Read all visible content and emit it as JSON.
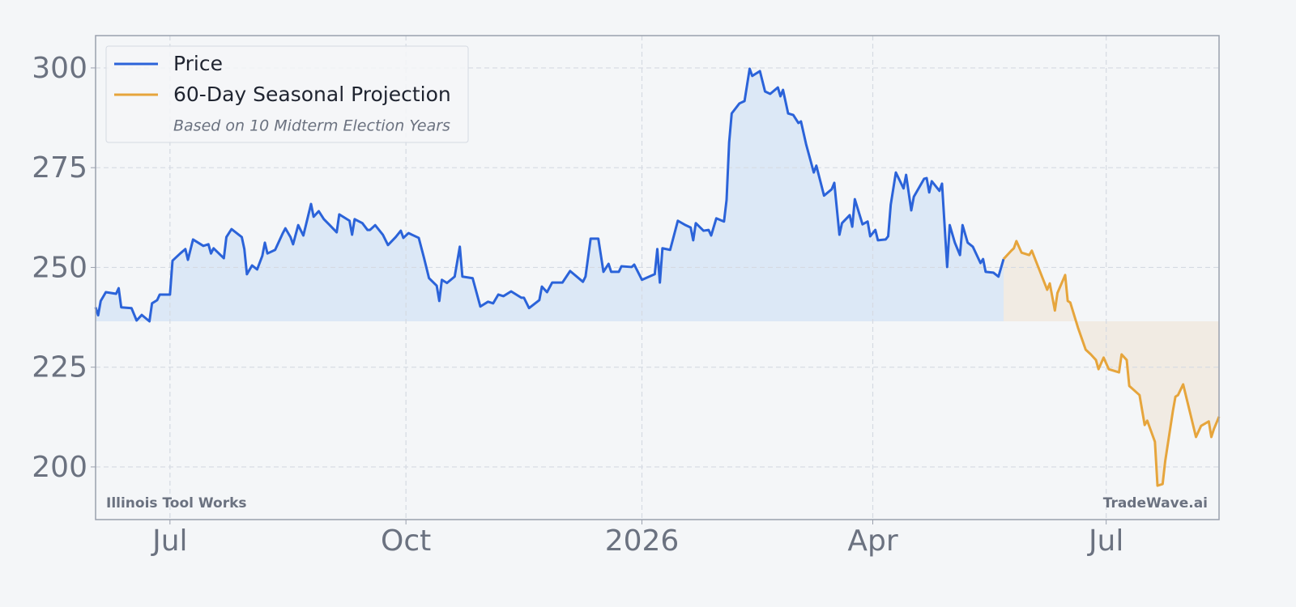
{
  "chart_data": {
    "type": "line",
    "x_ticks_note": null,
    "series": [
      {
        "name": "Price",
        "color": "#2b63d9",
        "x": [
          -29,
          -28,
          -27,
          -25,
          -21,
          -20,
          -19,
          -15,
          -13,
          -11,
          -8,
          -7,
          -5,
          -4,
          0,
          1,
          4,
          6,
          7,
          9,
          13,
          15,
          16,
          17,
          21,
          22,
          24,
          28,
          29,
          30,
          32,
          34,
          36,
          37,
          38,
          41,
          44,
          45,
          47,
          48,
          50,
          52,
          55,
          56,
          58,
          60,
          62,
          65,
          66,
          70,
          71,
          72,
          75,
          77,
          78,
          80,
          83,
          85,
          88,
          90,
          91,
          93,
          97,
          99,
          101,
          104,
          105,
          106,
          108,
          111,
          113,
          114,
          118,
          121,
          124,
          126,
          128,
          130,
          133,
          137,
          138,
          140,
          144,
          145,
          147,
          149,
          153,
          156,
          161,
          162,
          164,
          167,
          169,
          171,
          172,
          175,
          176,
          180,
          181,
          184,
          189,
          190,
          191,
          192,
          195,
          198,
          201,
          203,
          204,
          205,
          208,
          210,
          211,
          213,
          216,
          217,
          218,
          219,
          222,
          224,
          226,
          227,
          230,
          232,
          234,
          237,
          238,
          239,
          241,
          243,
          245,
          246,
          248,
          251,
          252,
          255,
          258,
          259,
          261,
          262,
          265,
          266,
          267,
          270,
          272,
          273,
          275,
          276,
          279,
          280,
          281,
          283,
          286,
          287,
          289,
          290,
          294,
          295,
          296,
          297,
          300,
          301,
          303,
          304,
          306,
          308,
          309,
          311,
          313,
          316,
          317,
          318,
          321,
          323,
          325
        ],
        "values": [
          240,
          238,
          241.6,
          243.8,
          243.4,
          244.8,
          240,
          239.8,
          236.7,
          238.1,
          236.5,
          241,
          241.8,
          243.2,
          243.2,
          251.7,
          253.5,
          254.6,
          251.9,
          257,
          255.4,
          255.8,
          253.5,
          254.8,
          252.3,
          257.6,
          259.6,
          257.6,
          254.6,
          248.3,
          250.5,
          249.5,
          252.9,
          256.2,
          253.5,
          254.4,
          258.6,
          259.8,
          257.6,
          255.8,
          260.6,
          258,
          265.9,
          262.7,
          264.1,
          262.1,
          260.8,
          258.8,
          263.3,
          261.7,
          258.2,
          262.1,
          261.1,
          259.4,
          259.4,
          260.6,
          258.2,
          255.6,
          257.6,
          259.2,
          257.4,
          258.6,
          257.4,
          252.5,
          247.3,
          245.4,
          241.6,
          246.9,
          246.1,
          247.7,
          255.2,
          247.7,
          247.3,
          240.2,
          241.4,
          241,
          243.2,
          242.8,
          244,
          242.4,
          242.4,
          239.8,
          241.8,
          245.2,
          243.8,
          246.2,
          246.2,
          249.1,
          246.4,
          247.7,
          257.2,
          257.2,
          248.9,
          250.9,
          248.9,
          248.9,
          250.3,
          250.1,
          250.7,
          246.9,
          248.3,
          254.6,
          246.2,
          254.8,
          254.4,
          261.7,
          260.6,
          260,
          256.8,
          261.1,
          259.2,
          259.4,
          258,
          262.3,
          261.5,
          266.9,
          281.3,
          288.6,
          291.1,
          291.7,
          299.8,
          298,
          299.2,
          294.1,
          293.5,
          295.1,
          292.9,
          294.5,
          288.6,
          288.2,
          286.2,
          286.6,
          280.9,
          273.8,
          275.5,
          268,
          269.6,
          271.2,
          258.2,
          261.1,
          263.1,
          260.2,
          267.1,
          260.8,
          261.5,
          257.8,
          259.4,
          256.8,
          257,
          257.8,
          265.7,
          273.8,
          269.8,
          273.2,
          264.3,
          267.7,
          272.2,
          272.4,
          268.8,
          271.6,
          269.2,
          271,
          250.1,
          260.6,
          256.2,
          253.1,
          260.6,
          256.2,
          255.2,
          251.1,
          252.1,
          248.9,
          248.7,
          247.7,
          252.1
        ],
        "fill": "#dce8f6"
      },
      {
        "name": "60-Day Seasonal Projection",
        "color": "#e6a53c",
        "x": [
          325,
          328,
          329,
          330,
          332,
          335,
          336,
          339,
          342,
          343,
          345,
          346,
          349,
          350,
          351,
          354,
          357,
          359,
          361,
          362,
          364,
          366,
          370,
          371,
          373,
          374,
          378,
          380,
          381,
          384,
          385,
          387,
          388,
          391,
          392,
          393,
          395,
          398,
          400,
          402,
          405,
          406,
          407,
          409
        ],
        "values": [
          252.1,
          254.2,
          254.8,
          256.6,
          253.7,
          253.1,
          254.2,
          249.3,
          244.4,
          246,
          239.2,
          243.6,
          248.1,
          241.6,
          241.2,
          234.9,
          229.4,
          228.2,
          226.8,
          224.5,
          227.4,
          224.5,
          223.7,
          228.2,
          226.8,
          220.3,
          218,
          210.5,
          211.6,
          206.3,
          195.3,
          195.7,
          201.4,
          214,
          217.6,
          218,
          220.7,
          212.8,
          207.5,
          210.3,
          211.4,
          207.5,
          209.5,
          212.6
        ],
        "fill": "#f1ebe3"
      }
    ],
    "legend_note": "Based on 10 Midterm Election Years",
    "annotations": [
      "Illinois Tool Works",
      "TradeWave.ai"
    ],
    "xlim": [
      -29,
      409
    ],
    "xticks": [
      {
        "value": 0,
        "label": "Jul"
      },
      {
        "value": 92,
        "label": "Oct"
      },
      {
        "value": 184,
        "label": "2026"
      },
      {
        "value": 274,
        "label": "Apr"
      },
      {
        "value": 365,
        "label": "Jul"
      }
    ],
    "ylim": [
      186.8,
      308.1
    ],
    "yticks": [
      200,
      225,
      250,
      275,
      300
    ],
    "fill_baseline": 236.5,
    "grid": true,
    "legend": "upper left"
  }
}
